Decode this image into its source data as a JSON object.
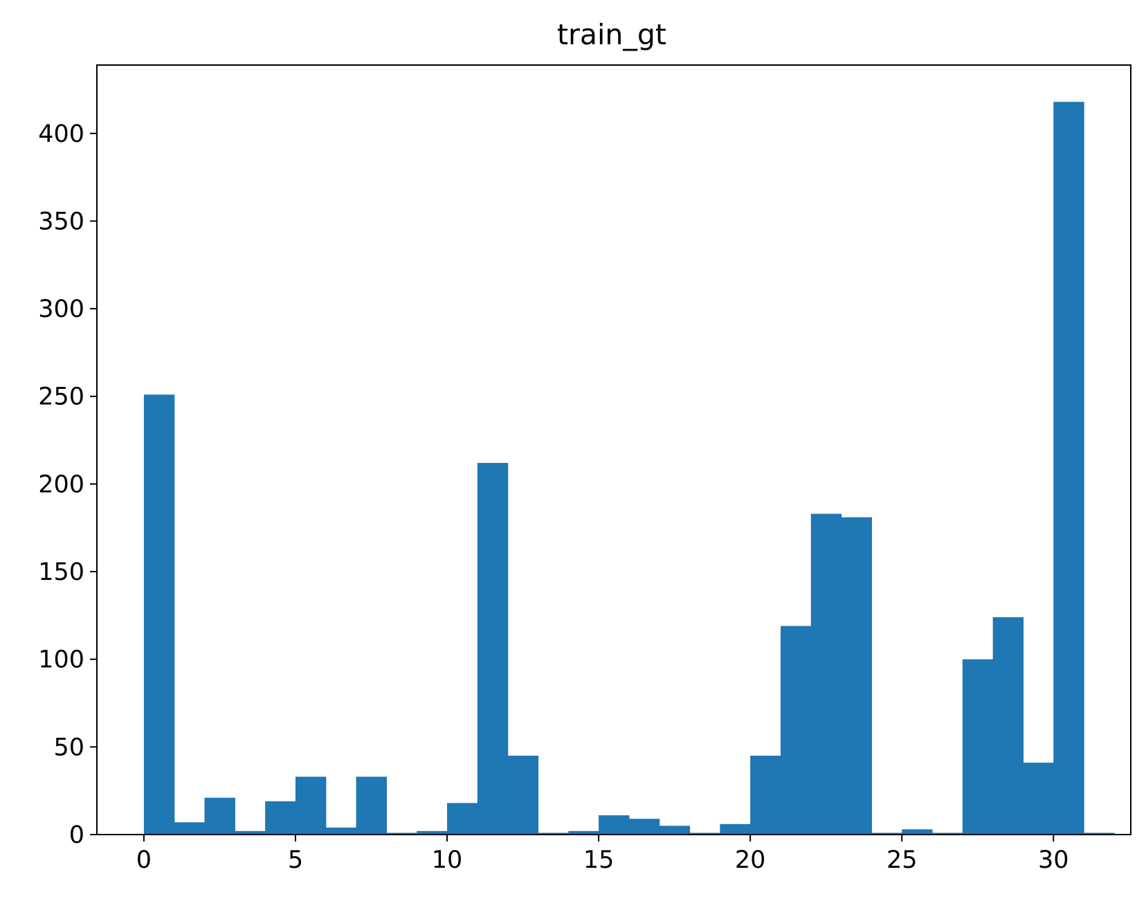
{
  "chart_data": {
    "type": "bar",
    "title": "train_gt",
    "xlabel": "",
    "ylabel": "",
    "bin_start": 0,
    "bin_width": 1,
    "values": [
      251,
      7,
      21,
      2,
      19,
      33,
      4,
      33,
      1,
      2,
      18,
      212,
      45,
      1,
      2,
      11,
      9,
      5,
      1,
      6,
      45,
      119,
      183,
      181,
      1,
      3,
      1,
      100,
      124,
      41,
      418,
      1
    ],
    "xlim": [
      -1.55,
      32.55
    ],
    "ylim": [
      0,
      439
    ],
    "xticks": [
      0,
      5,
      10,
      15,
      20,
      25,
      30
    ],
    "xtick_labels": [
      "0",
      "5",
      "10",
      "15",
      "20",
      "25",
      "30"
    ],
    "yticks": [
      0,
      50,
      100,
      150,
      200,
      250,
      300,
      350,
      400
    ],
    "ytick_labels": [
      "0",
      "50",
      "100",
      "150",
      "200",
      "250",
      "300",
      "350",
      "400"
    ],
    "bar_color": "#1f77b4",
    "grid": false,
    "legend": "none"
  }
}
